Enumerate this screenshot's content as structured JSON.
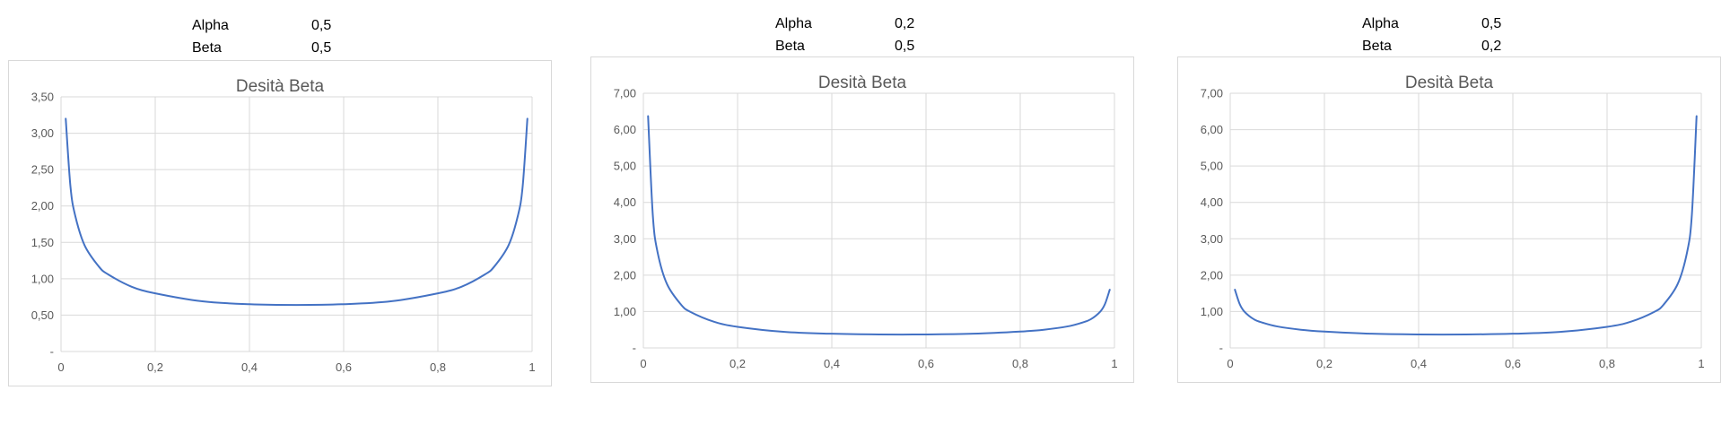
{
  "colors": {
    "series_line": "#4472c4",
    "gridline": "#d9d9d9",
    "axis_text": "#595959"
  },
  "panels": [
    {
      "params": [
        {
          "name": "Alpha",
          "value": "0,5"
        },
        {
          "name": "Beta",
          "value": "0,5"
        }
      ]
    },
    {
      "params": [
        {
          "name": "Alpha",
          "value": "0,2"
        },
        {
          "name": "Beta",
          "value": "0,5"
        }
      ]
    },
    {
      "params": [
        {
          "name": "Alpha",
          "value": "0,5"
        },
        {
          "name": "Beta",
          "value": "0,2"
        }
      ]
    }
  ],
  "chart_data": [
    {
      "type": "line",
      "title": "Desità Beta",
      "xlabel": "",
      "ylabel": "",
      "alpha": 0.5,
      "beta": 0.5,
      "xlim": [
        0,
        1
      ],
      "ylim": [
        0,
        3.5
      ],
      "x_ticks": [
        "0",
        "0,2",
        "0,4",
        "0,6",
        "0,8",
        "1"
      ],
      "x_tick_values": [
        0,
        0.2,
        0.4,
        0.6,
        0.8,
        1
      ],
      "y_ticks": [
        "-",
        "0,50",
        "1,00",
        "1,50",
        "2,00",
        "2,50",
        "3,00",
        "3,50"
      ],
      "y_tick_values": [
        0,
        0.5,
        1,
        1.5,
        2,
        2.5,
        3,
        3.5
      ],
      "grid": true,
      "legend": "none",
      "series": [
        {
          "x": [
            0.01,
            0.02,
            0.03,
            0.05,
            0.08,
            0.1,
            0.15,
            0.2,
            0.3,
            0.4,
            0.5,
            0.6,
            0.7,
            0.8,
            0.85,
            0.9,
            0.92,
            0.95,
            0.97,
            0.98,
            0.99
          ],
          "y": [
            3.2,
            2.27,
            1.87,
            1.46,
            1.17,
            1.06,
            0.89,
            0.8,
            0.69,
            0.65,
            0.64,
            0.65,
            0.69,
            0.8,
            0.89,
            1.06,
            1.17,
            1.46,
            1.87,
            2.27,
            3.2
          ]
        }
      ]
    },
    {
      "type": "line",
      "title": "Desità Beta",
      "xlabel": "",
      "ylabel": "",
      "alpha": 0.2,
      "beta": 0.5,
      "xlim": [
        0,
        1
      ],
      "ylim": [
        0,
        7
      ],
      "x_ticks": [
        "0",
        "0,2",
        "0,4",
        "0,6",
        "0,8",
        "1"
      ],
      "x_tick_values": [
        0,
        0.2,
        0.4,
        0.6,
        0.8,
        1
      ],
      "y_ticks": [
        "-",
        "1,00",
        "2,00",
        "3,00",
        "4,00",
        "5,00",
        "6,00",
        "7,00"
      ],
      "y_tick_values": [
        0,
        1,
        2,
        3,
        4,
        5,
        6,
        7
      ],
      "grid": true,
      "legend": "none",
      "series": [
        {
          "x": [
            0.01,
            0.02,
            0.03,
            0.05,
            0.08,
            0.1,
            0.15,
            0.2,
            0.3,
            0.4,
            0.5,
            0.6,
            0.7,
            0.8,
            0.85,
            0.9,
            0.93,
            0.95,
            0.97,
            0.98,
            0.99
          ],
          "y": [
            6.37,
            3.66,
            2.64,
            1.76,
            1.19,
            0.99,
            0.72,
            0.58,
            0.44,
            0.39,
            0.37,
            0.37,
            0.39,
            0.45,
            0.5,
            0.59,
            0.69,
            0.79,
            1.0,
            1.21,
            1.6
          ]
        }
      ]
    },
    {
      "type": "line",
      "title": "Desità Beta",
      "xlabel": "",
      "ylabel": "",
      "alpha": 0.5,
      "beta": 0.2,
      "xlim": [
        0,
        1
      ],
      "ylim": [
        0,
        7
      ],
      "x_ticks": [
        "0",
        "0,2",
        "0,4",
        "0,6",
        "0,8",
        "1"
      ],
      "x_tick_values": [
        0,
        0.2,
        0.4,
        0.6,
        0.8,
        1
      ],
      "y_ticks": [
        "-",
        "1,00",
        "2,00",
        "3,00",
        "4,00",
        "5,00",
        "6,00",
        "7,00"
      ],
      "y_tick_values": [
        0,
        1,
        2,
        3,
        4,
        5,
        6,
        7
      ],
      "grid": true,
      "legend": "none",
      "series": [
        {
          "x": [
            0.01,
            0.02,
            0.03,
            0.05,
            0.07,
            0.1,
            0.15,
            0.2,
            0.3,
            0.4,
            0.5,
            0.6,
            0.7,
            0.8,
            0.85,
            0.9,
            0.92,
            0.95,
            0.97,
            0.98,
            0.99
          ],
          "y": [
            1.6,
            1.21,
            1.0,
            0.79,
            0.69,
            0.59,
            0.5,
            0.45,
            0.39,
            0.37,
            0.37,
            0.39,
            0.44,
            0.58,
            0.72,
            0.99,
            1.19,
            1.76,
            2.64,
            3.66,
            6.37
          ]
        }
      ]
    }
  ]
}
